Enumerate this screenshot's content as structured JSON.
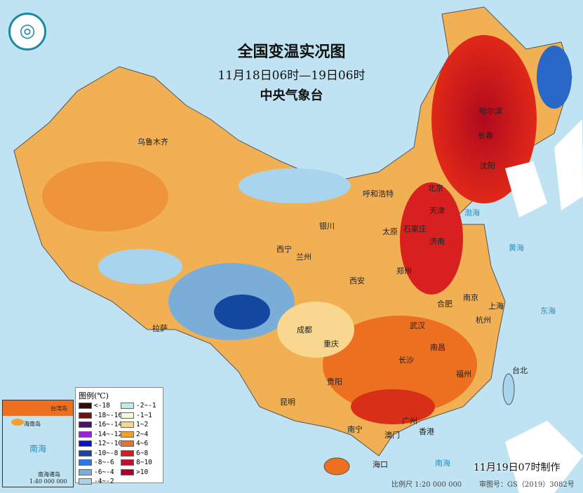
{
  "title": "全国变温实况图",
  "period": "11月18日06时—19日06时",
  "agency": "中央气象台",
  "made": "11月19日07时制作",
  "scale": "比例尺 1:20 000 000",
  "map_no": "审图号：GS（2019）3082号",
  "legend": {
    "title": "图例(℃)",
    "items": [
      {
        "label": "<-18",
        "color": "#3a0a0a"
      },
      {
        "label": "-18~-16",
        "color": "#7a0e0e"
      },
      {
        "label": "-16~-14",
        "color": "#4a106e"
      },
      {
        "label": "-14~-12",
        "color": "#a020d8"
      },
      {
        "label": "-12~-10",
        "color": "#0c10d0"
      },
      {
        "label": "-10~-8",
        "color": "#1447a0"
      },
      {
        "label": "-8~-6",
        "color": "#2a78e8"
      },
      {
        "label": "-6~-4",
        "color": "#7aaed8"
      },
      {
        "label": "-4~-2",
        "color": "#a8d4ee"
      },
      {
        "label": "-2~-1",
        "color": "#b8f0e0"
      },
      {
        "label": "-1~1",
        "color": "#f6f8d8"
      },
      {
        "label": "1~2",
        "color": "#f8d890"
      },
      {
        "label": "2~4",
        "color": "#f0a030"
      },
      {
        "label": "4~6",
        "color": "#ec7020"
      },
      {
        "label": "6~8",
        "color": "#e01818"
      },
      {
        "label": "8~10",
        "color": "#c01030"
      },
      {
        "label": ">10",
        "color": "#a00828"
      }
    ]
  },
  "inset": {
    "label": "南海诸岛",
    "scale": "1:40 000 000",
    "sea": "南海",
    "taiwan": "台湾岛",
    "hainan": "海南岛"
  },
  "cities": [
    "乌鲁木齐",
    "哈尔滨",
    "长春",
    "沈阳",
    "北京",
    "呼和浩特",
    "天津",
    "石家庄",
    "太原",
    "银川",
    "济南",
    "西宁",
    "兰州",
    "郑州",
    "西安",
    "南京",
    "合肥",
    "上海",
    "杭州",
    "拉萨",
    "成都",
    "武汉",
    "重庆",
    "南昌",
    "长沙",
    "福州",
    "台北",
    "贵阳",
    "昆明",
    "南宁",
    "广州",
    "香港",
    "澳门",
    "海口"
  ],
  "seas": {
    "bohai": "渤海",
    "huanghai": "黄海",
    "donghai": "东海",
    "nanhai": "南海"
  },
  "logo": "气象"
}
